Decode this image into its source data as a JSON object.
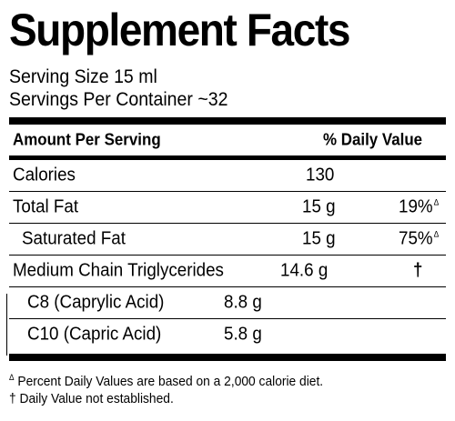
{
  "title": "Supplement Facts",
  "serving": {
    "size": "Serving Size 15 ml",
    "per_container": "Servings Per Container ~32"
  },
  "table": {
    "header_left": "Amount Per Serving",
    "header_right": "% Daily Value",
    "calories": {
      "label": "Calories",
      "amount": "130"
    },
    "total_fat": {
      "label": "Total Fat",
      "amount": "15 g",
      "dv": "19%",
      "mark": "Δ"
    },
    "saturated_fat": {
      "label": "Saturated Fat",
      "amount": "15 g",
      "dv": "75%",
      "mark": "Δ"
    },
    "mct": {
      "label": "Medium Chain Triglycerides",
      "amount": "14.6 g",
      "dv": "†"
    },
    "c8": {
      "label": "C8 (Caprylic Acid)",
      "amount": "8.8 g"
    },
    "c10": {
      "label": "C10 (Capric Acid)",
      "amount": "5.8 g"
    }
  },
  "footnotes": {
    "percent_mark": "Δ",
    "percent_note": "Percent Daily Values are based on a 2,000 calorie diet.",
    "dagger_note": "† Daily Value not established."
  }
}
